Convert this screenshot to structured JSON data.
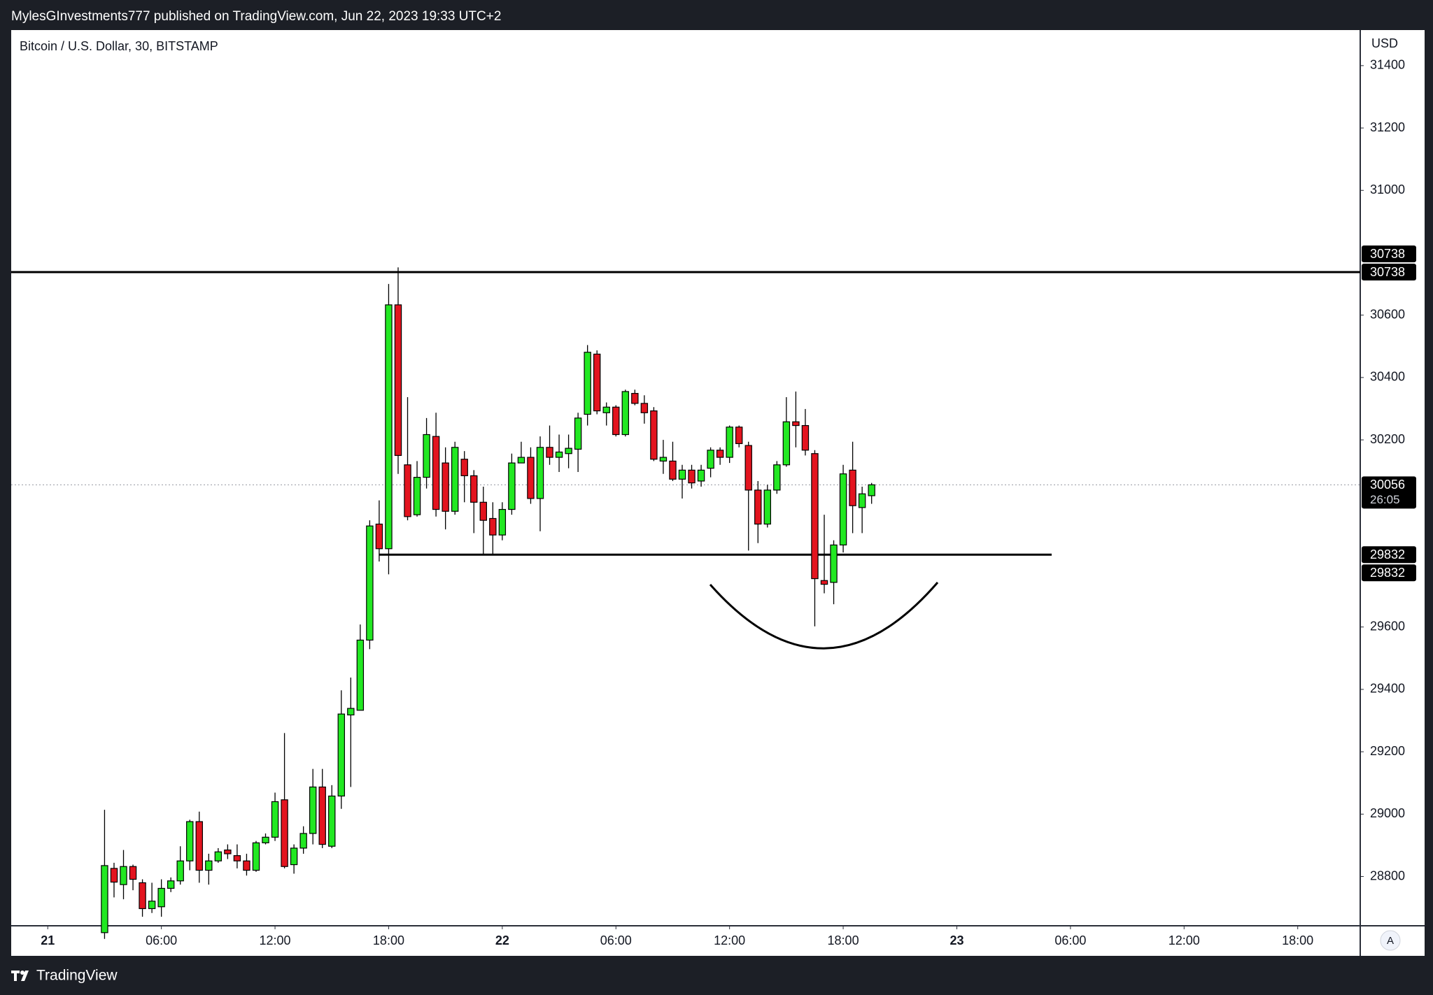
{
  "header": {
    "text": "MylesGInvestments777 published on TradingView.com, Jun 22, 2023 19:33 UTC+2"
  },
  "footer": {
    "brand": "TradingView"
  },
  "axis_button": "A",
  "chart_data": {
    "type": "candlestick",
    "title": "Bitcoin / U.S. Dollar, 30, BITSTAMP",
    "y_axis_label": "USD",
    "up_color": "#22e822",
    "down_color": "#e3141f",
    "x": [
      3,
      3.5,
      4,
      4.5,
      5,
      5.5,
      6,
      6.5,
      7,
      7.5,
      8,
      8.5,
      9,
      9.5,
      10,
      10.5,
      11,
      11.5,
      12,
      12.5,
      13,
      13.5,
      14,
      14.5,
      15,
      15.5,
      16,
      16.5,
      17,
      17.5,
      18,
      18.5,
      19,
      19.5,
      20,
      20.5,
      21,
      21.5,
      22,
      22.5,
      23,
      23.5,
      24,
      24.5,
      25,
      25.5,
      26,
      26.5,
      27,
      27.5,
      28,
      28.5,
      29,
      29.5,
      30,
      30.5,
      31,
      31.5,
      32,
      32.5,
      33,
      33.5,
      34,
      34.5,
      35,
      35.5,
      36,
      36.5,
      37,
      37.5,
      38,
      38.5,
      39,
      39.5,
      40,
      40.5,
      41,
      41.5,
      42,
      42.5,
      43,
      43.5
    ],
    "open": [
      28620,
      28826,
      28774,
      28832,
      28780,
      28697,
      28703,
      28762,
      28786,
      28850,
      28976,
      28820,
      28850,
      28885,
      28867,
      28850,
      28820,
      28908,
      28926,
      29046,
      28838,
      28891,
      28938,
      29087,
      28897,
      29058,
      29318,
      29333,
      29558,
      29930,
      29851,
      30633,
      30120,
      29960,
      30080,
      30211,
      30126,
      29971,
      30138,
      30085,
      30000,
      29948,
      29895,
      29977,
      30126,
      30144,
      30012,
      30176,
      30144,
      30156,
      30170,
      30282,
      30475,
      30287,
      30305,
      30217,
      30349,
      30317,
      30293,
      30132,
      30132,
      30074,
      30103,
      30068,
      30109,
      30167,
      30144,
      30241,
      30182,
      30039,
      29930,
      30039,
      30120,
      30258,
      30246,
      30156,
      29749,
      29743,
      29863,
      30103,
      29983,
      30021
    ],
    "high": [
      29014,
      28844,
      28885,
      28838,
      28791,
      28780,
      28791,
      28797,
      28897,
      28982,
      29008,
      28873,
      28891,
      28903,
      28903,
      28873,
      28914,
      28938,
      29069,
      29260,
      28903,
      28961,
      29145,
      29145,
      29093,
      29397,
      29438,
      29608,
      29942,
      30006,
      30700,
      30753,
      30337,
      30132,
      30270,
      30287,
      30176,
      30194,
      30164,
      30103,
      30050,
      30000,
      30000,
      30156,
      30194,
      30176,
      30211,
      30246,
      30217,
      30217,
      30287,
      30504,
      30487,
      30320,
      30311,
      30361,
      30361,
      30343,
      30305,
      30200,
      30194,
      30120,
      30120,
      30120,
      30176,
      30176,
      30246,
      30246,
      30194,
      30068,
      30056,
      30132,
      30337,
      30355,
      30299,
      30167,
      29960,
      29878,
      30120,
      30194,
      30050,
      30062
    ],
    "low": [
      28600,
      28733,
      28727,
      28756,
      28671,
      28683,
      28671,
      28750,
      28774,
      28820,
      28780,
      28774,
      28844,
      28856,
      28826,
      28803,
      28815,
      28903,
      28914,
      28826,
      28809,
      28873,
      28903,
      28891,
      28891,
      29017,
      29087,
      29333,
      29529,
      29810,
      29769,
      30091,
      29942,
      29954,
      30044,
      29954,
      29913,
      29960,
      30000,
      29901,
      29833,
      29833,
      29878,
      29960,
      30126,
      29995,
      29907,
      30120,
      30097,
      30109,
      30097,
      30246,
      30282,
      30246,
      30211,
      30211,
      30311,
      30252,
      30132,
      30091,
      30068,
      30012,
      30044,
      30050,
      30080,
      30120,
      30126,
      30176,
      29845,
      29869,
      29919,
      30027,
      30114,
      30176,
      30150,
      29602,
      29708,
      29673,
      29839,
      29901,
      29901,
      29995
    ],
    "close": [
      28835,
      28782,
      28832,
      28791,
      28697,
      28721,
      28762,
      28786,
      28850,
      28976,
      28820,
      28850,
      28879,
      28873,
      28850,
      28820,
      28908,
      28926,
      29040,
      28832,
      28891,
      28938,
      29087,
      28903,
      29058,
      29321,
      29339,
      29558,
      29924,
      29851,
      30633,
      30150,
      29954,
      30080,
      30217,
      29977,
      29971,
      30176,
      30085,
      30000,
      29942,
      29895,
      29977,
      30126,
      30144,
      30012,
      30176,
      30144,
      30161,
      30173,
      30270,
      30481,
      30293,
      30305,
      30217,
      30355,
      30317,
      30287,
      30138,
      30144,
      30074,
      30103,
      30062,
      30103,
      30167,
      30144,
      30241,
      30188,
      30039,
      29930,
      30039,
      30120,
      30258,
      30246,
      30167,
      29755,
      29737,
      29863,
      30091,
      29989,
      30027,
      30056
    ],
    "ylim": [
      28642,
      31514
    ],
    "yticks": [
      28800,
      29000,
      29200,
      29400,
      29600,
      30200,
      30400,
      30600,
      31000,
      31200,
      31400
    ],
    "xlim": [
      -1.93,
      69.3
    ],
    "xticks": [
      {
        "value": 0,
        "label": "21"
      },
      {
        "value": 6,
        "label": "06:00"
      },
      {
        "value": 12,
        "label": "12:00"
      },
      {
        "value": 18,
        "label": "18:00"
      },
      {
        "value": 24,
        "label": "22"
      },
      {
        "value": 30,
        "label": "06:00"
      },
      {
        "value": 36,
        "label": "12:00"
      },
      {
        "value": 42,
        "label": "18:00"
      },
      {
        "value": 48,
        "label": "23"
      },
      {
        "value": 54,
        "label": "06:00"
      },
      {
        "value": 60,
        "label": "12:00"
      },
      {
        "value": 66,
        "label": "18:00"
      }
    ],
    "hlines": [
      30738,
      29832
    ],
    "last_price": 30056,
    "countdown": "26:05"
  }
}
